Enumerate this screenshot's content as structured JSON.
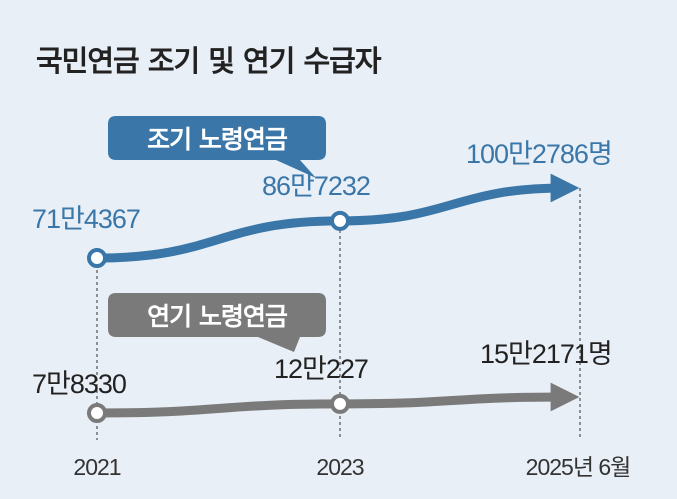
{
  "title": "국민연금 조기 및 연기 수급자",
  "chart_data": {
    "type": "line",
    "categories": [
      "2021",
      "2023",
      "2025년 6월"
    ],
    "colors": {
      "early": "#3a77a8",
      "deferred": "#7a7a7a",
      "background": "#e9eff6"
    },
    "series": [
      {
        "key": "early",
        "name": "조기 노령연금",
        "values": [
          714367,
          867232,
          1002786
        ],
        "labels": [
          "71만4367",
          "86만7232",
          "100만2786명"
        ]
      },
      {
        "key": "deferred",
        "name": "연기 노령연금",
        "values": [
          78330,
          120227,
          152171
        ],
        "labels": [
          "7만8330",
          "12만227",
          "15만2171명"
        ]
      }
    ]
  }
}
